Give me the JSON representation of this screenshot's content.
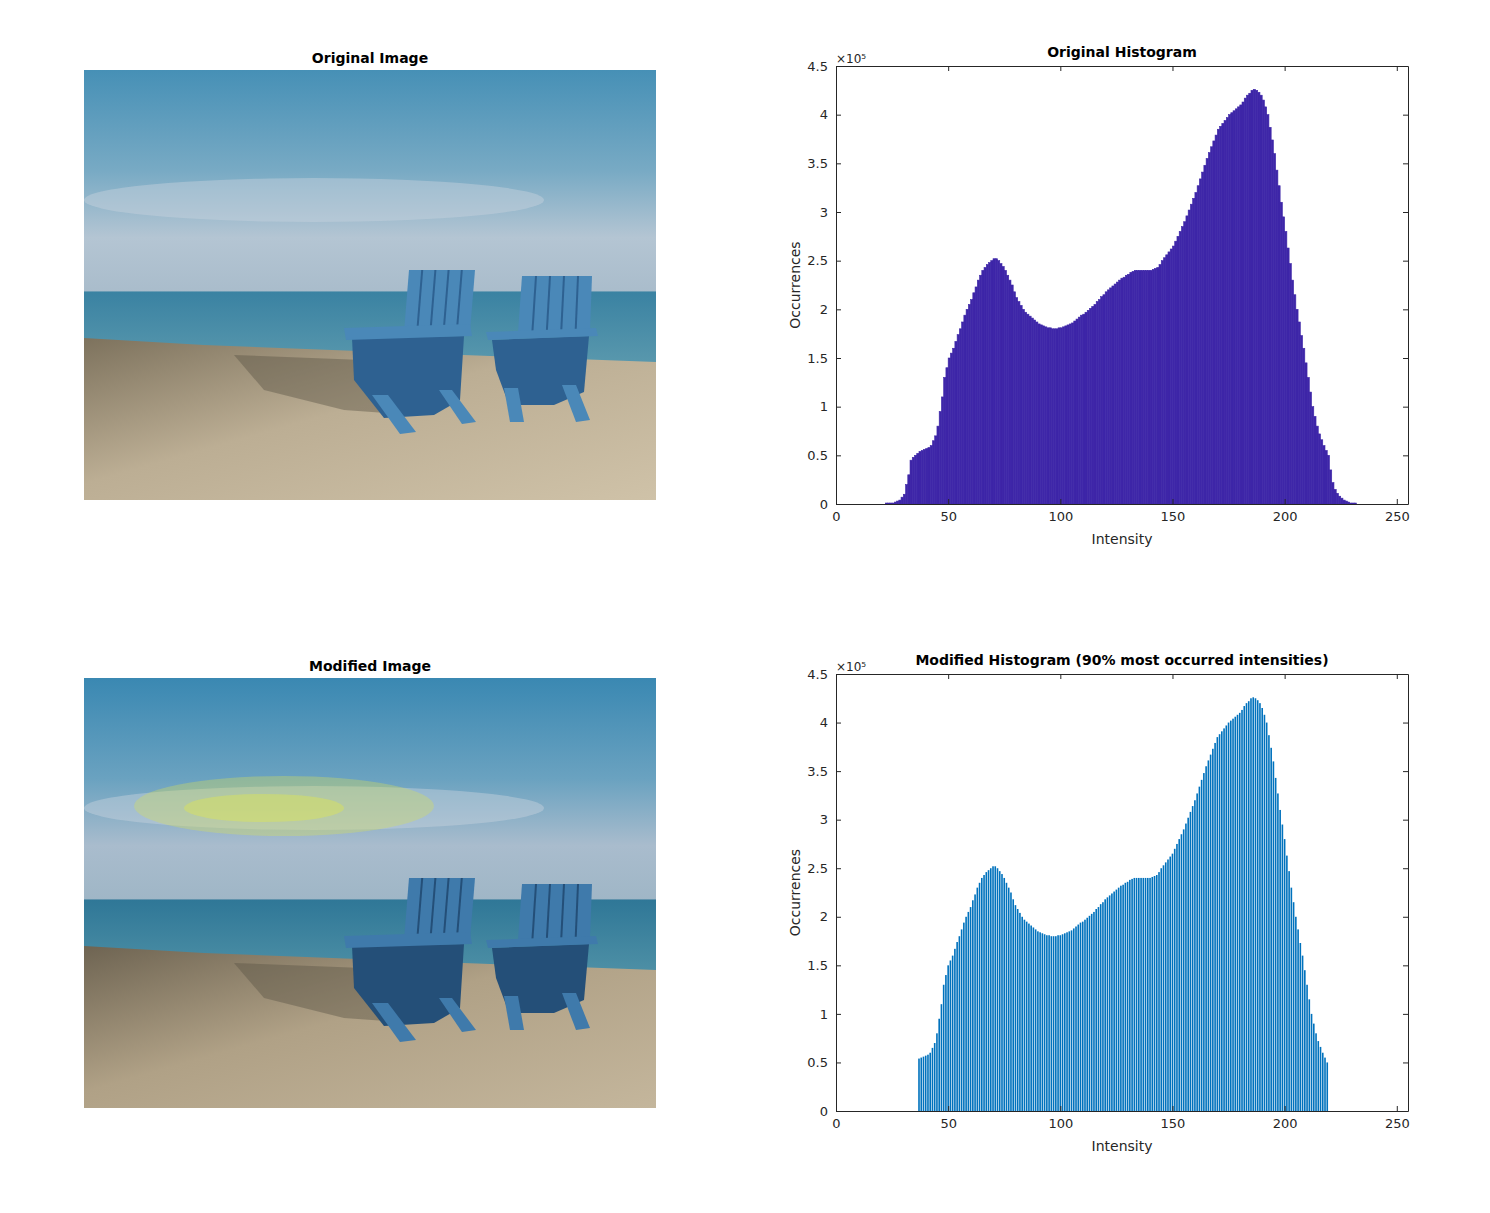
{
  "images": [
    {
      "title": "Original Image"
    },
    {
      "title": "Modified Image"
    }
  ],
  "chart_data": [
    {
      "type": "histogram",
      "title": "Original Histogram",
      "x_label": "Intensity",
      "y_label": "Occurrences",
      "y_exponent_label": "×10⁵",
      "color": "#3e26a8",
      "grid": false,
      "xlim": [
        0,
        255
      ],
      "xticks": [
        0,
        50,
        100,
        150,
        200,
        250
      ],
      "ylim": [
        0,
        4.5
      ],
      "yticks": [
        0,
        0.5,
        1,
        1.5,
        2,
        2.5,
        3,
        3.5,
        4,
        4.5
      ],
      "bins": [
        18,
        19,
        20,
        21,
        22,
        23,
        24,
        25,
        26,
        27,
        28,
        29,
        30,
        31,
        32,
        33,
        34,
        35,
        36,
        37,
        38,
        39,
        40,
        41,
        42,
        43,
        44,
        45,
        46,
        47,
        48,
        49,
        50,
        51,
        52,
        53,
        54,
        55,
        56,
        57,
        58,
        59,
        60,
        61,
        62,
        63,
        64,
        65,
        66,
        67,
        68,
        69,
        70,
        71,
        72,
        73,
        74,
        75,
        76,
        77,
        78,
        79,
        80,
        81,
        82,
        83,
        84,
        85,
        86,
        87,
        88,
        89,
        90,
        91,
        92,
        93,
        94,
        95,
        96,
        97,
        98,
        99,
        100,
        101,
        102,
        103,
        104,
        105,
        106,
        107,
        108,
        109,
        110,
        111,
        112,
        113,
        114,
        115,
        116,
        117,
        118,
        119,
        120,
        121,
        122,
        123,
        124,
        125,
        126,
        127,
        128,
        129,
        130,
        131,
        132,
        133,
        134,
        135,
        136,
        137,
        138,
        139,
        140,
        141,
        142,
        143,
        144,
        145,
        146,
        147,
        148,
        149,
        150,
        151,
        152,
        153,
        154,
        155,
        156,
        157,
        158,
        159,
        160,
        161,
        162,
        163,
        164,
        165,
        166,
        167,
        168,
        169,
        170,
        171,
        172,
        173,
        174,
        175,
        176,
        177,
        178,
        179,
        180,
        181,
        182,
        183,
        184,
        185,
        186,
        187,
        188,
        189,
        190,
        191,
        192,
        193,
        194,
        195,
        196,
        197,
        198,
        199,
        200,
        201,
        202,
        203,
        204,
        205,
        206,
        207,
        208,
        209,
        210,
        211,
        212,
        213,
        214,
        215,
        216,
        217,
        218,
        219,
        220,
        221,
        222,
        223,
        224,
        225,
        226,
        227,
        228,
        229,
        230,
        231,
        232,
        233,
        234,
        235
      ],
      "values": [
        0,
        0,
        0,
        0,
        0.01,
        0.01,
        0.01,
        0.01,
        0.02,
        0.03,
        0.04,
        0.07,
        0.1,
        0.2,
        0.3,
        0.45,
        0.48,
        0.5,
        0.52,
        0.54,
        0.55,
        0.56,
        0.57,
        0.58,
        0.6,
        0.65,
        0.7,
        0.8,
        0.95,
        1.1,
        1.3,
        1.4,
        1.5,
        1.55,
        1.6,
        1.67,
        1.74,
        1.8,
        1.87,
        1.94,
        2.0,
        2.05,
        2.1,
        2.17,
        2.23,
        2.3,
        2.35,
        2.4,
        2.43,
        2.46,
        2.48,
        2.5,
        2.52,
        2.52,
        2.5,
        2.47,
        2.44,
        2.4,
        2.35,
        2.3,
        2.25,
        2.18,
        2.12,
        2.08,
        2.04,
        2.0,
        1.97,
        1.95,
        1.93,
        1.91,
        1.89,
        1.87,
        1.85,
        1.84,
        1.83,
        1.82,
        1.81,
        1.81,
        1.8,
        1.8,
        1.8,
        1.81,
        1.81,
        1.82,
        1.83,
        1.84,
        1.85,
        1.86,
        1.88,
        1.9,
        1.92,
        1.94,
        1.95,
        1.97,
        1.99,
        2.01,
        2.03,
        2.05,
        2.08,
        2.1,
        2.13,
        2.15,
        2.18,
        2.2,
        2.22,
        2.24,
        2.26,
        2.28,
        2.3,
        2.32,
        2.33,
        2.35,
        2.36,
        2.38,
        2.39,
        2.4,
        2.4,
        2.4,
        2.4,
        2.4,
        2.4,
        2.4,
        2.4,
        2.41,
        2.42,
        2.43,
        2.46,
        2.5,
        2.53,
        2.56,
        2.59,
        2.62,
        2.65,
        2.7,
        2.75,
        2.8,
        2.85,
        2.9,
        2.96,
        3.02,
        3.08,
        3.14,
        3.2,
        3.27,
        3.34,
        3.41,
        3.48,
        3.55,
        3.61,
        3.67,
        3.73,
        3.79,
        3.85,
        3.88,
        3.91,
        3.94,
        3.97,
        4.0,
        4.02,
        4.04,
        4.06,
        4.08,
        4.1,
        4.13,
        4.17,
        4.2,
        4.22,
        4.25,
        4.26,
        4.25,
        4.23,
        4.2,
        4.15,
        4.08,
        4.0,
        3.87,
        3.74,
        3.6,
        3.43,
        3.27,
        3.1,
        2.95,
        2.8,
        2.63,
        2.47,
        2.3,
        2.15,
        2.0,
        1.87,
        1.73,
        1.6,
        1.45,
        1.3,
        1.15,
        1.0,
        0.9,
        0.8,
        0.72,
        0.66,
        0.6,
        0.55,
        0.5,
        0.35,
        0.22,
        0.15,
        0.11,
        0.08,
        0.06,
        0.04,
        0.03,
        0.02,
        0.01,
        0.01,
        0.01,
        0,
        0,
        0
      ]
    },
    {
      "type": "bar",
      "title": "Modified Histogram (90% most occurred intensities)",
      "x_label": "Intensity",
      "y_label": "Occurrences",
      "y_exponent_label": "×10⁵",
      "color": "#0072bd",
      "grid": false,
      "xlim": [
        0,
        255
      ],
      "xticks": [
        0,
        50,
        100,
        150,
        200,
        250
      ],
      "ylim": [
        0,
        4.5
      ],
      "yticks": [
        0,
        0.5,
        1,
        1.5,
        2,
        2.5,
        3,
        3.5,
        4,
        4.5
      ],
      "x": [
        37,
        38,
        39,
        40,
        41,
        42,
        43,
        44,
        45,
        46,
        47,
        48,
        49,
        50,
        51,
        52,
        53,
        54,
        55,
        56,
        57,
        58,
        59,
        60,
        61,
        62,
        63,
        64,
        65,
        66,
        67,
        68,
        69,
        70,
        71,
        72,
        73,
        74,
        75,
        76,
        77,
        78,
        79,
        80,
        81,
        82,
        83,
        84,
        85,
        86,
        87,
        88,
        89,
        90,
        91,
        92,
        93,
        94,
        95,
        96,
        97,
        98,
        99,
        100,
        101,
        102,
        103,
        104,
        105,
        106,
        107,
        108,
        109,
        110,
        111,
        112,
        113,
        114,
        115,
        116,
        117,
        118,
        119,
        120,
        121,
        122,
        123,
        124,
        125,
        126,
        127,
        128,
        129,
        130,
        131,
        132,
        133,
        134,
        135,
        136,
        137,
        138,
        139,
        140,
        141,
        142,
        143,
        144,
        145,
        146,
        147,
        148,
        149,
        150,
        151,
        152,
        153,
        154,
        155,
        156,
        157,
        158,
        159,
        160,
        161,
        162,
        163,
        164,
        165,
        166,
        167,
        168,
        169,
        170,
        171,
        172,
        173,
        174,
        175,
        176,
        177,
        178,
        179,
        180,
        181,
        182,
        183,
        184,
        185,
        186,
        187,
        188,
        189,
        190,
        191,
        192,
        193,
        194,
        195,
        196,
        197,
        198,
        199,
        200,
        201,
        202,
        203,
        204,
        205,
        206,
        207,
        208,
        209,
        210,
        211,
        212,
        213,
        214,
        215,
        216,
        217,
        218,
        219
      ],
      "values": [
        0.54,
        0.55,
        0.56,
        0.57,
        0.58,
        0.6,
        0.65,
        0.7,
        0.8,
        0.95,
        1.1,
        1.3,
        1.4,
        1.5,
        1.55,
        1.6,
        1.67,
        1.74,
        1.8,
        1.87,
        1.94,
        2.0,
        2.05,
        2.1,
        2.17,
        2.23,
        2.3,
        2.35,
        2.4,
        2.43,
        2.46,
        2.48,
        2.5,
        2.52,
        2.52,
        2.5,
        2.47,
        2.44,
        2.4,
        2.35,
        2.3,
        2.25,
        2.18,
        2.12,
        2.08,
        2.04,
        2.0,
        1.97,
        1.95,
        1.93,
        1.91,
        1.89,
        1.87,
        1.85,
        1.84,
        1.83,
        1.82,
        1.81,
        1.81,
        1.8,
        1.8,
        1.8,
        1.81,
        1.81,
        1.82,
        1.83,
        1.84,
        1.85,
        1.86,
        1.88,
        1.9,
        1.92,
        1.94,
        1.95,
        1.97,
        1.99,
        2.01,
        2.03,
        2.05,
        2.08,
        2.1,
        2.13,
        2.15,
        2.18,
        2.2,
        2.22,
        2.24,
        2.26,
        2.28,
        2.3,
        2.32,
        2.33,
        2.35,
        2.36,
        2.38,
        2.39,
        2.4,
        2.4,
        2.4,
        2.4,
        2.4,
        2.4,
        2.4,
        2.4,
        2.41,
        2.42,
        2.43,
        2.46,
        2.5,
        2.53,
        2.56,
        2.59,
        2.62,
        2.65,
        2.7,
        2.75,
        2.8,
        2.85,
        2.9,
        2.96,
        3.02,
        3.08,
        3.14,
        3.2,
        3.27,
        3.34,
        3.41,
        3.48,
        3.55,
        3.61,
        3.67,
        3.73,
        3.79,
        3.85,
        3.88,
        3.91,
        3.94,
        3.97,
        4.0,
        4.02,
        4.04,
        4.06,
        4.08,
        4.1,
        4.13,
        4.17,
        4.2,
        4.22,
        4.25,
        4.26,
        4.25,
        4.23,
        4.2,
        4.15,
        4.08,
        4.0,
        3.87,
        3.74,
        3.6,
        3.43,
        3.27,
        3.1,
        2.95,
        2.8,
        2.63,
        2.47,
        2.3,
        2.15,
        2.0,
        1.87,
        1.73,
        1.6,
        1.45,
        1.3,
        1.15,
        1.0,
        0.9,
        0.8,
        0.72,
        0.66,
        0.6,
        0.55,
        0.5
      ]
    }
  ]
}
